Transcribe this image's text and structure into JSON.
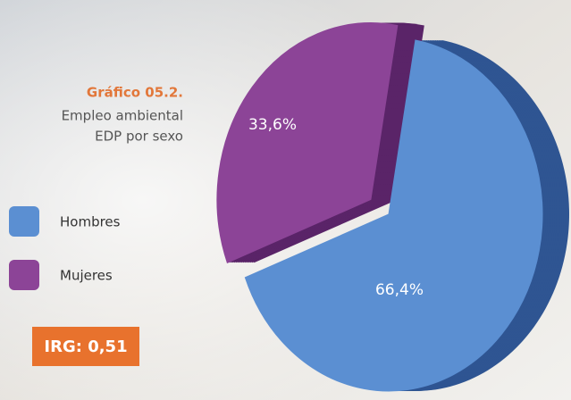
{
  "chart_data": {
    "type": "pie",
    "title": "Gráfico 05.2.",
    "subtitle": [
      "Empleo ambiental",
      "EDP por sexo"
    ],
    "categories": [
      "Hombres",
      "Mujeres"
    ],
    "values": [
      66.4,
      33.6
    ],
    "value_labels": [
      "66,4%",
      "33,6%"
    ],
    "colors": [
      "#5b8fd2",
      "#8c4497"
    ],
    "annotation": "IRG: 0,51"
  }
}
